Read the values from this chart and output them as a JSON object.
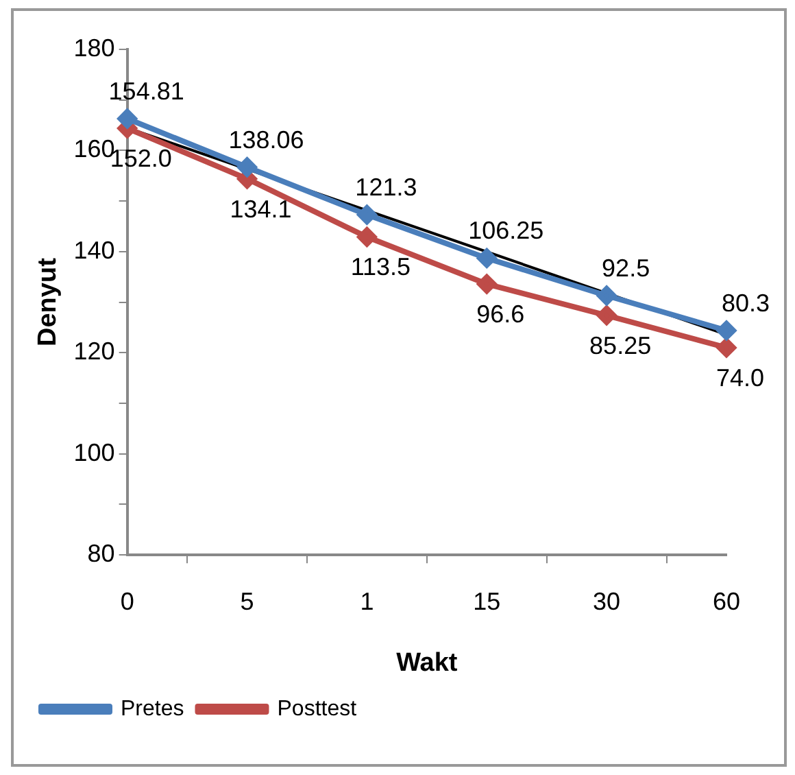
{
  "chart_data": {
    "type": "line",
    "xlabel": "Wakt",
    "ylabel": "Denyut",
    "categories": [
      "0",
      "5",
      "1",
      "15",
      "30",
      "60"
    ],
    "series": [
      {
        "name": "Pretes",
        "color": "#4a7ebb",
        "values": [
          166.3,
          156.7,
          147.3,
          138.7,
          131.3,
          124.4
        ],
        "marker": "diamond"
      },
      {
        "name": "Posttest",
        "color": "#be4b48",
        "values": [
          164.4,
          154.4,
          142.9,
          133.6,
          127.4,
          121.0
        ],
        "marker": "diamond"
      },
      {
        "color": "#000000",
        "values": [
          164.5,
          null,
          null,
          null,
          null,
          123.6
        ],
        "marker": "none"
      }
    ],
    "ylim": [
      80,
      180
    ],
    "yticks": [
      80,
      {
        "value": 90,
        "label": null
      },
      100,
      {
        "value": 110,
        "label": null
      },
      120,
      {
        "value": 130,
        "label": null
      },
      140,
      {
        "value": 150,
        "label": null
      },
      160,
      {
        "value": 170,
        "label": null
      },
      180
    ],
    "annotations": [
      {
        "text": "154.81",
        "x": "0",
        "y": 166.3
      },
      {
        "text": "138.06",
        "x": "5",
        "y": 156.7
      },
      {
        "text": "121.3",
        "x": "1",
        "y": 147.3
      },
      {
        "text": "106.25",
        "x": "15",
        "y": 138.7
      },
      {
        "text": "92.5",
        "x": "30",
        "y": 131.3
      },
      {
        "text": "80.3",
        "x": "60",
        "y": 124.4
      },
      {
        "text": "152.0",
        "x": "0",
        "y": 164.4
      },
      {
        "text": "134.1",
        "x": "5",
        "y": 154.4
      },
      {
        "text": "113.5",
        "x": "1",
        "y": 142.9
      },
      {
        "text": "96.6",
        "x": "15",
        "y": 133.6
      },
      {
        "text": "85.25",
        "x": "30",
        "y": 127.4
      },
      {
        "text": "74.0",
        "x": "60",
        "y": 121.0
      }
    ],
    "grid": false,
    "legend": "bottom left",
    "line_style": "solid"
  }
}
